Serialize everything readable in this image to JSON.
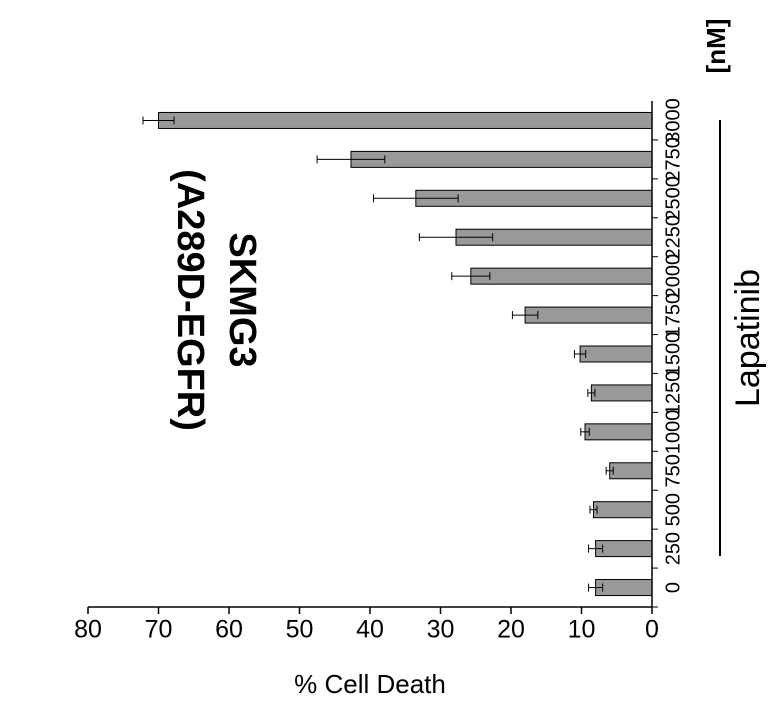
{
  "chart_data": {
    "type": "bar",
    "title_lines": [
      "SKMG3",
      "(A289D-EGFR)"
    ],
    "categories": [
      "0",
      "250",
      "500",
      "750",
      "1000",
      "1250",
      "1500",
      "1750",
      "2000",
      "2250",
      "2500",
      "2750",
      "3000"
    ],
    "values": [
      8,
      8,
      8.3,
      6,
      9.5,
      8.6,
      10.2,
      18,
      25.7,
      27.8,
      33.5,
      42.7,
      70
    ],
    "errors": [
      1,
      1,
      0.5,
      0.5,
      0.6,
      0.5,
      0.8,
      1.8,
      2.7,
      5.2,
      6,
      4.8,
      2.2
    ],
    "ylabel": "% Cell Death",
    "ylim": [
      0,
      80
    ],
    "yticks": [
      "0",
      "10",
      "20",
      "30",
      "40",
      "50",
      "60",
      "70",
      "80"
    ],
    "unit_label": "[nM]",
    "group_label": "Lapatinib",
    "orientation": "rotated 90° clockwise",
    "bar_color": "#999999"
  }
}
